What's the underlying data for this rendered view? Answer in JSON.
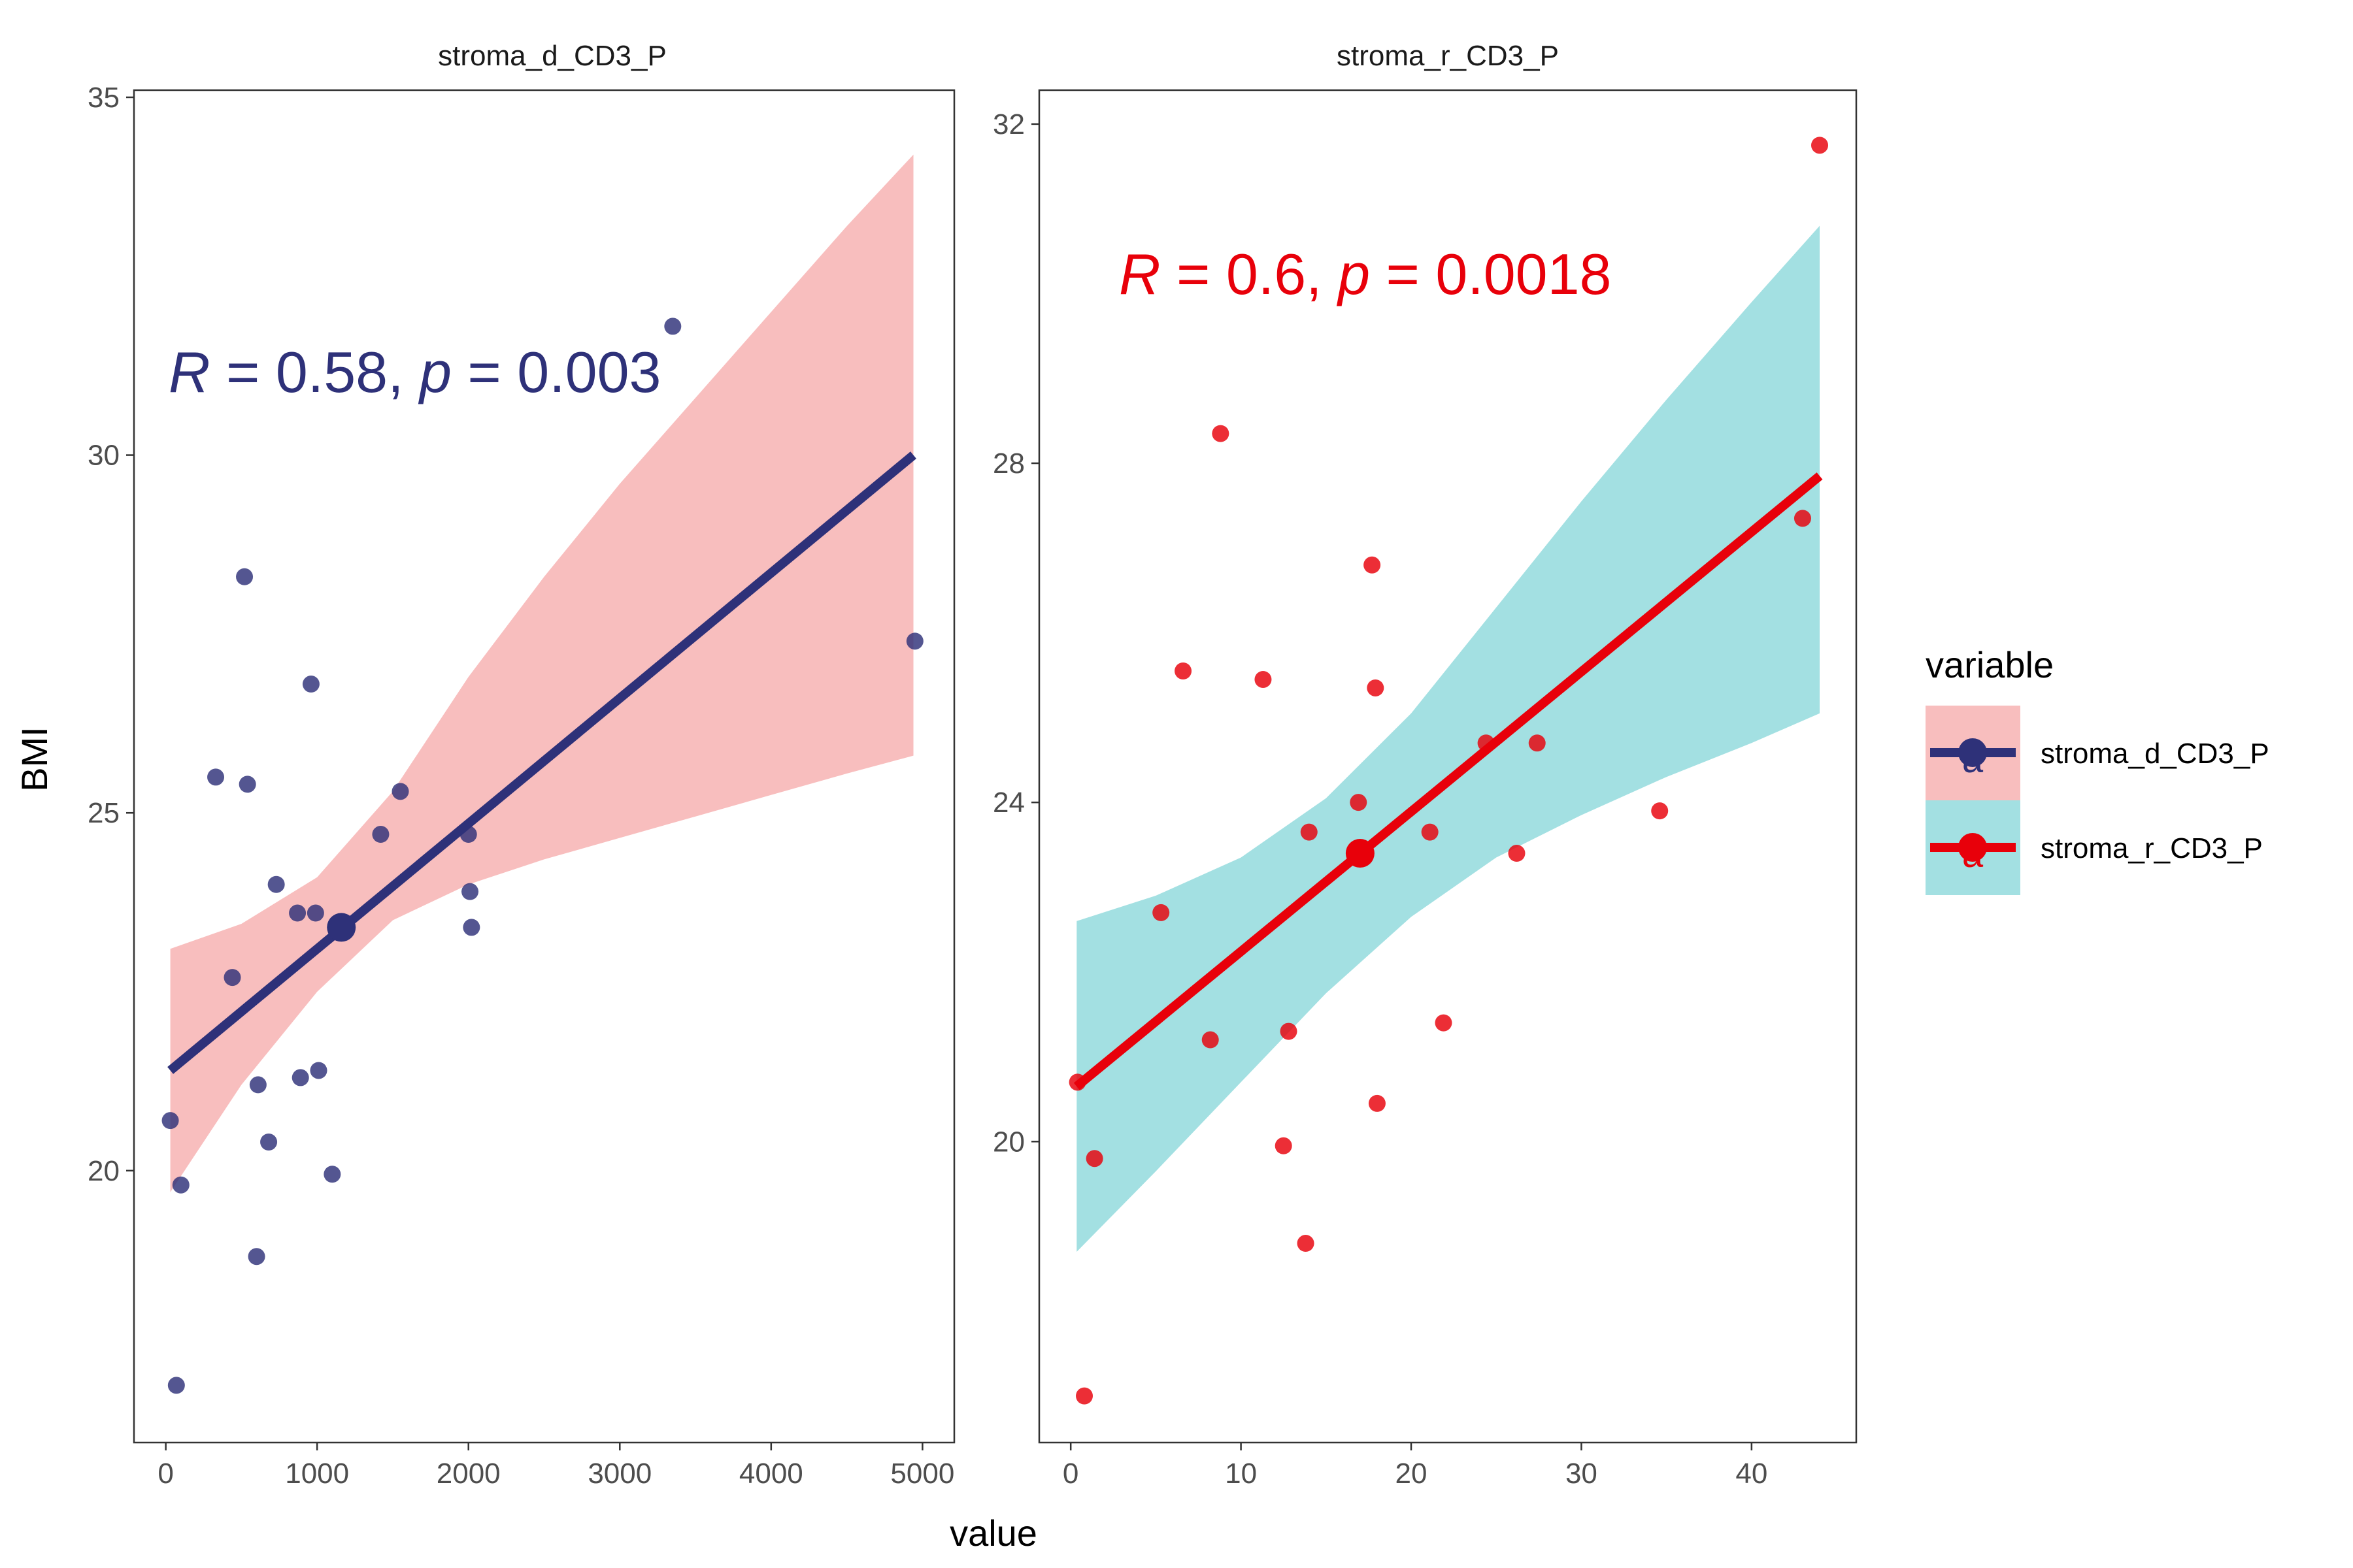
{
  "y_axis_title": "BMI",
  "x_axis_title": "value",
  "legend": {
    "title": "variable",
    "items": [
      {
        "label": "stroma_d_CD3_P",
        "line_color": "#2E3179",
        "fill_color": "#F8BEBE",
        "glyph": "a"
      },
      {
        "label": "stroma_r_CD3_P",
        "line_color": "#E8000A",
        "fill_color": "#A3E0E2",
        "glyph": "a"
      }
    ]
  },
  "chart_data": [
    {
      "type": "scatter",
      "title": "stroma_d_CD3_P",
      "point_color": "#2E3179",
      "band_color": "#F8BEBE",
      "line_color": "#2E3179",
      "xlim": [
        -210,
        5210
      ],
      "ylim": [
        16.2,
        35.1
      ],
      "x_ticks": [
        0,
        1000,
        2000,
        3000,
        4000,
        5000
      ],
      "x_tick_labels": [
        "0",
        "1000",
        "2000",
        "3000",
        "4000",
        "5000"
      ],
      "y_ticks": [
        20,
        25,
        30,
        35
      ],
      "y_tick_labels": [
        "20",
        "25",
        "30",
        "35"
      ],
      "annotation": {
        "r_label": "R",
        "r_value": " = 0.58, ",
        "p_label": "p",
        "p_value": " = 0.003",
        "color": "#2E3179"
      },
      "regression": {
        "x": [
          30,
          4940
        ],
        "y": [
          21.4,
          30.0
        ]
      },
      "confidence_band": {
        "x": [
          30,
          500,
          1000,
          1500,
          2000,
          2500,
          3000,
          3500,
          4000,
          4500,
          4940
        ],
        "upper": [
          23.1,
          23.45,
          24.1,
          25.3,
          26.9,
          28.3,
          29.6,
          30.8,
          32.0,
          33.2,
          34.2
        ],
        "lower": [
          19.7,
          21.2,
          22.5,
          23.5,
          24.0,
          24.35,
          24.65,
          24.95,
          25.25,
          25.55,
          25.8
        ]
      },
      "mean_point": {
        "x": 1160,
        "y": 23.4
      },
      "points": {
        "x": [
          30,
          70,
          100,
          330,
          440,
          520,
          540,
          600,
          610,
          680,
          730,
          870,
          890,
          960,
          990,
          1010,
          1100,
          1420,
          1550,
          2000,
          2010,
          2020,
          3350,
          4950
        ],
        "y": [
          20.7,
          17.0,
          19.8,
          25.5,
          22.7,
          28.3,
          25.4,
          18.8,
          21.2,
          20.4,
          24.0,
          23.6,
          21.3,
          26.8,
          23.6,
          21.4,
          19.95,
          24.7,
          25.3,
          24.7,
          23.9,
          23.4,
          31.8,
          27.4
        ]
      }
    },
    {
      "type": "scatter",
      "title": "stroma_r_CD3_P",
      "point_color": "#E8000A",
      "band_color": "#A3E0E2",
      "line_color": "#E8000A",
      "xlim": [
        -1.85,
        46.15
      ],
      "ylim": [
        16.45,
        32.4
      ],
      "x_ticks": [
        0,
        10,
        20,
        30,
        40
      ],
      "x_tick_labels": [
        "0",
        "10",
        "20",
        "30",
        "40"
      ],
      "y_ticks": [
        20,
        24,
        28,
        32
      ],
      "y_tick_labels": [
        "20",
        "24",
        "28",
        "32"
      ],
      "annotation": {
        "r_label": "R",
        "r_value": " = 0.6, ",
        "p_label": "p",
        "p_value": " = 0.0018",
        "color": "#E8000A"
      },
      "regression": {
        "x": [
          0.35,
          44.0
        ],
        "y": [
          20.65,
          27.85
        ]
      },
      "confidence_band": {
        "x": [
          0.35,
          5,
          10,
          15,
          20,
          25,
          30,
          35,
          40,
          44.0
        ],
        "upper": [
          22.6,
          22.9,
          23.35,
          24.05,
          25.05,
          26.3,
          27.55,
          28.75,
          29.9,
          30.8
        ],
        "lower": [
          18.7,
          19.65,
          20.7,
          21.75,
          22.65,
          23.35,
          23.85,
          24.3,
          24.7,
          25.05
        ]
      },
      "mean_point": {
        "x": 17.0,
        "y": 23.4
      },
      "points": {
        "x": [
          0.4,
          0.8,
          1.4,
          5.3,
          6.6,
          8.2,
          8.8,
          11.3,
          12.5,
          12.8,
          13.8,
          14.0,
          16.9,
          17.7,
          17.9,
          18.0,
          21.1,
          21.9,
          24.4,
          26.2,
          27.4,
          34.6,
          43.0,
          44.0
        ],
        "y": [
          20.7,
          17.0,
          19.8,
          22.7,
          25.55,
          21.2,
          28.35,
          25.45,
          19.95,
          21.3,
          18.8,
          23.65,
          24.0,
          26.8,
          25.35,
          20.45,
          23.65,
          21.4,
          24.7,
          23.4,
          24.7,
          23.9,
          27.35,
          31.75
        ]
      }
    }
  ]
}
